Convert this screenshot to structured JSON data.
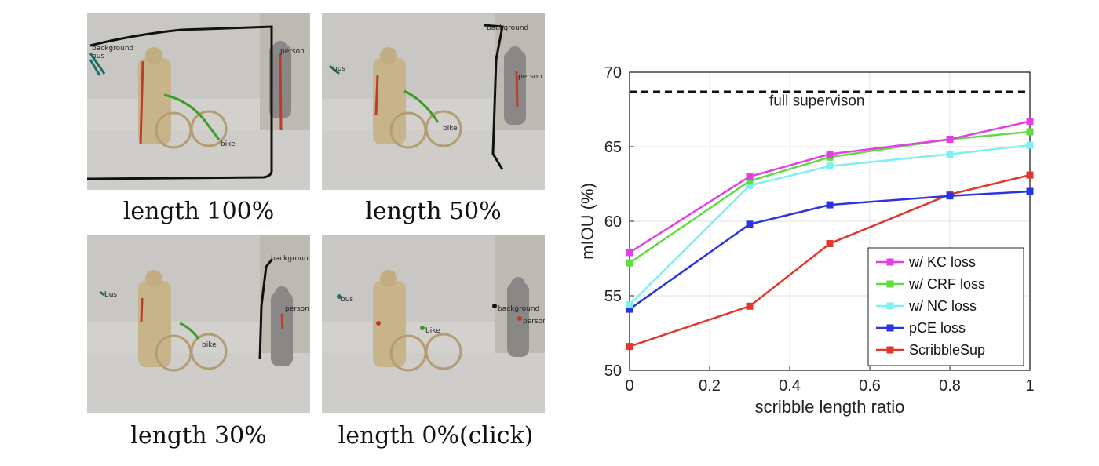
{
  "panels": [
    {
      "caption": "length 100%",
      "labels": [
        "background",
        "bus",
        "person",
        "bike"
      ]
    },
    {
      "caption": "length 50%",
      "labels": [
        "background",
        "bus",
        "person",
        "bike"
      ]
    },
    {
      "caption": "length 30%",
      "labels": [
        "background",
        "bus",
        "person",
        "bike"
      ]
    },
    {
      "caption": "length 0%(click)",
      "labels": [
        "background",
        "bus",
        "person",
        "bike"
      ]
    }
  ],
  "chart_data": {
    "type": "line",
    "xlabel": "scribble length ratio",
    "ylabel": "mIOU (%)",
    "xlim": [
      0,
      1
    ],
    "ylim": [
      50,
      70
    ],
    "xticks": [
      0,
      0.2,
      0.4,
      0.6,
      0.8,
      1
    ],
    "xtick_labels": [
      "0",
      "0.2",
      "0.4",
      "0.6",
      "0.8",
      "1"
    ],
    "yticks": [
      50,
      55,
      60,
      65,
      70
    ],
    "ytick_labels": [
      "50",
      "55",
      "60",
      "65",
      "70"
    ],
    "grid": true,
    "legend_position": "bottom-right",
    "x": [
      0,
      0.3,
      0.5,
      0.8,
      1
    ],
    "series": [
      {
        "name": "w/ KC loss",
        "color": "#e43fe4",
        "values": [
          57.9,
          63.0,
          64.5,
          65.5,
          66.7
        ]
      },
      {
        "name": "w/ CRF loss",
        "color": "#5fdc3f",
        "values": [
          57.2,
          62.7,
          64.3,
          65.5,
          66.0
        ]
      },
      {
        "name": "w/ NC loss",
        "color": "#7fefef",
        "values": [
          54.4,
          62.4,
          63.7,
          64.5,
          65.1
        ]
      },
      {
        "name": "pCE loss",
        "color": "#2a35e0",
        "values": [
          54.1,
          59.8,
          61.1,
          61.7,
          62.0
        ]
      },
      {
        "name": "ScribbleSup",
        "color": "#e0382a",
        "values": [
          51.6,
          54.3,
          58.5,
          61.8,
          63.1
        ]
      }
    ],
    "reference": {
      "label": "full supervison",
      "value": 68.7
    }
  }
}
